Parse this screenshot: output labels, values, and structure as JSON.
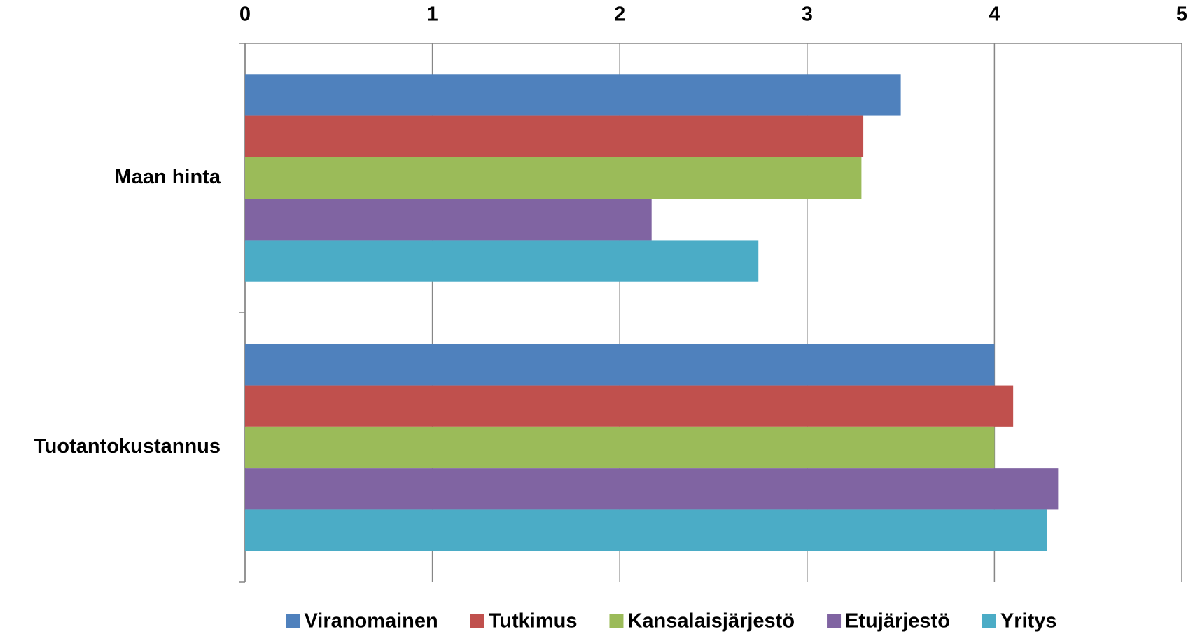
{
  "chart_data": {
    "type": "barh",
    "categories": [
      "Maan hinta",
      "Tuotantokustannus"
    ],
    "series": [
      {
        "name": "Viranomainen",
        "color": "#4f81bd",
        "values": [
          3.5,
          4.0
        ]
      },
      {
        "name": "Tutkimus",
        "color": "#c0504d",
        "values": [
          3.3,
          4.1
        ]
      },
      {
        "name": "Kansalaisjärjestö",
        "color": "#9bbb59",
        "values": [
          3.29,
          4.0
        ]
      },
      {
        "name": "Etujärjestö",
        "color": "#8064a2",
        "values": [
          2.17,
          4.34
        ]
      },
      {
        "name": "Yritys",
        "color": "#4bacc6",
        "values": [
          2.74,
          4.28
        ]
      }
    ],
    "xlim": [
      0,
      5
    ],
    "xticks": [
      0,
      1,
      2,
      3,
      4,
      5
    ],
    "grid": true,
    "legend": "bottom"
  }
}
